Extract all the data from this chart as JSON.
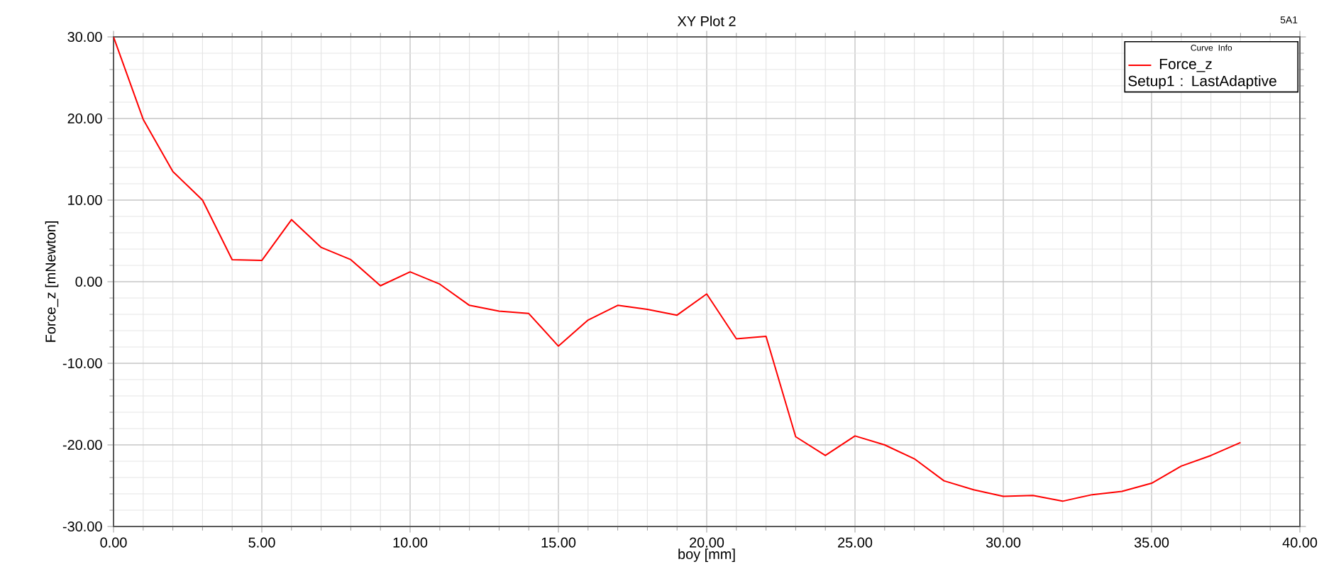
{
  "chart_data": {
    "type": "line",
    "title": "XY Plot 2",
    "xlabel": "boy [mm]",
    "ylabel": "Force_z [mNewton]",
    "legend_title": "Curve Info",
    "legend": "top right",
    "grid": true,
    "marker": "none",
    "line_style": "solid",
    "x": [
      0,
      1,
      2,
      3,
      4,
      5,
      6,
      7,
      8,
      9,
      10,
      11,
      12,
      13,
      14,
      15,
      16,
      17,
      18,
      19,
      20,
      21,
      22,
      23,
      24,
      25,
      26,
      27,
      28,
      29,
      30,
      31,
      32,
      33,
      34,
      35,
      36,
      37,
      38
    ],
    "series": [
      {
        "name": "Force_z",
        "color": "#ff0000",
        "values": [
          30,
          19.9,
          13.5,
          10.0,
          2.7,
          2.6,
          7.6,
          4.2,
          2.7,
          -0.5,
          1.2,
          -0.3,
          -2.9,
          -3.6,
          -3.9,
          -7.9,
          -4.7,
          -2.9,
          -3.4,
          -4.1,
          -1.5,
          -7.0,
          -6.7,
          -19.0,
          -21.3,
          -18.9,
          -20.0,
          -21.7,
          -24.4,
          -25.5,
          -26.3,
          -26.2,
          -26.9,
          -26.1,
          -25.7,
          -24.7,
          -22.6,
          -21.3,
          -19.7
        ]
      }
    ],
    "xlim": [
      0,
      40
    ],
    "ylim": [
      -30,
      30
    ],
    "xticks": [
      {
        "value": 0,
        "label": "0.00"
      },
      {
        "value": 5,
        "label": "5.00"
      },
      {
        "value": 10,
        "label": "10.00"
      },
      {
        "value": 15,
        "label": "15.00"
      },
      {
        "value": 20,
        "label": "20.00"
      },
      {
        "value": 25,
        "label": "25.00"
      },
      {
        "value": 30,
        "label": "30.00"
      },
      {
        "value": 35,
        "label": "35.00"
      },
      {
        "value": 40,
        "label": "40.00"
      }
    ],
    "yticks": [
      {
        "value": -30,
        "label": "-30.00"
      },
      {
        "value": -20,
        "label": "-20.00"
      },
      {
        "value": -10,
        "label": "-10.00"
      },
      {
        "value": 0,
        "label": "0.00"
      },
      {
        "value": 10,
        "label": "10.00"
      },
      {
        "value": 20,
        "label": "20.00"
      },
      {
        "value": 30,
        "label": "30.00"
      }
    ],
    "annotations": [
      "Setup1 : LastAdaptive",
      "5A1"
    ]
  }
}
